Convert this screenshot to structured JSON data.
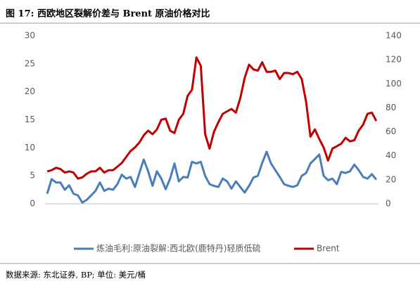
{
  "chart_data": {
    "type": "line",
    "title": "图 17: 西欧地区裂解价差与 Brent 原油价格对比",
    "source": "数据来源: 东北证券, BP; 单位: 美元/桶",
    "categories": [
      null,
      null,
      null,
      null,
      null,
      null,
      null,
      null,
      null,
      null,
      null,
      null,
      null,
      null,
      null,
      null,
      null,
      null,
      null,
      null,
      null,
      null,
      null,
      null,
      null,
      null,
      null,
      null,
      null,
      null,
      null,
      null,
      null,
      null,
      null,
      null,
      null,
      null,
      null,
      null,
      null,
      null,
      null,
      null,
      null,
      null,
      null,
      null,
      null,
      null,
      null,
      null,
      null,
      null,
      null,
      null,
      null,
      null,
      null,
      null,
      null,
      null,
      null,
      null,
      null,
      null,
      null,
      null,
      null,
      null,
      null,
      null,
      null,
      null,
      null,
      null
    ],
    "series": [
      {
        "name": "炼油毛利:原油裂解:西北欧(鹿特丹)轻质低硫",
        "color": "#4a7ebb",
        "axis": "y",
        "values": [
          1.8,
          4.4,
          3.8,
          3.8,
          2.5,
          3.3,
          1.8,
          1.5,
          0.2,
          0.7,
          1.5,
          2.3,
          3.8,
          2.3,
          2.7,
          2.5,
          3.5,
          5.2,
          4.5,
          4.8,
          3.0,
          5.5,
          7.9,
          5.8,
          3.2,
          5.8,
          4.5,
          2.6,
          4.5,
          7.2,
          4.0,
          4.8,
          4.7,
          7.5,
          7.2,
          7.5,
          5.0,
          3.5,
          3.2,
          3.0,
          4.5,
          4.0,
          2.7,
          4.0,
          3.0,
          2.0,
          3.2,
          4.7,
          5.0,
          7.3,
          9.3,
          7.2,
          6.0,
          4.8,
          3.5,
          3.2,
          3.0,
          3.3,
          5.0,
          5.5,
          7.2,
          8.0,
          8.8,
          5.0,
          4.2,
          4.5,
          3.5,
          5.7,
          5.5,
          5.8,
          7.0,
          6.0,
          4.8,
          4.5,
          5.3,
          4.3
        ]
      },
      {
        "name": "Brent",
        "color": "#c00000",
        "axis": "y2",
        "values": [
          27,
          28,
          30,
          29,
          26,
          27,
          26,
          21,
          22,
          25,
          27,
          27,
          30,
          26,
          28,
          28,
          31,
          34,
          39,
          44,
          47,
          51,
          57,
          61,
          58,
          62,
          70,
          71,
          61,
          59,
          70,
          75,
          90,
          95,
          122,
          115,
          58,
          46,
          60,
          68,
          75,
          77,
          79,
          76,
          88,
          105,
          116,
          112,
          111,
          118,
          110,
          110,
          111,
          104,
          109,
          109,
          108,
          110,
          104,
          85,
          56,
          62,
          54,
          47,
          36,
          46,
          48,
          50,
          55,
          52,
          53,
          61,
          66,
          75,
          76,
          69
        ]
      }
    ],
    "ylim": [
      0,
      30
    ],
    "yticks": [
      0,
      5,
      10,
      15,
      20,
      25,
      30
    ],
    "y2lim": [
      0,
      140
    ],
    "y2ticks": [
      0,
      20,
      40,
      60,
      80,
      100,
      120,
      140
    ],
    "legend": "bottom"
  }
}
